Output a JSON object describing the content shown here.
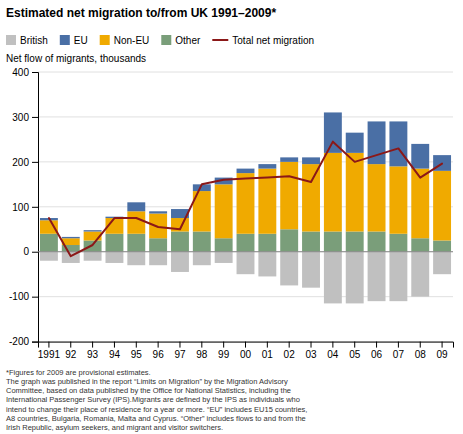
{
  "chart_data": {
    "type": "bar",
    "stacked": true,
    "title": "Estimated net migration to/from UK 1991–2009*",
    "y_label": "Net flow of migrants, thousands",
    "categories": [
      "1991",
      "92",
      "93",
      "94",
      "95",
      "96",
      "97",
      "98",
      "99",
      "00",
      "01",
      "02",
      "03",
      "04",
      "05",
      "06",
      "07",
      "08",
      "09"
    ],
    "series": [
      {
        "name": "British",
        "color": "#c0c0c0",
        "values": [
          -20,
          -25,
          -20,
          -25,
          -30,
          -30,
          -45,
          -30,
          -25,
          -50,
          -55,
          -75,
          -80,
          -115,
          -115,
          -110,
          -110,
          -100,
          -50
        ]
      },
      {
        "name": "EU",
        "color": "#4a6fa5",
        "values": [
          5,
          3,
          3,
          3,
          20,
          5,
          20,
          15,
          15,
          10,
          10,
          10,
          15,
          90,
          45,
          95,
          100,
          55,
          35
        ]
      },
      {
        "name": "Non-EU",
        "color": "#f0aa00",
        "values": [
          30,
          15,
          20,
          35,
          50,
          55,
          30,
          90,
          120,
          135,
          145,
          150,
          150,
          175,
          175,
          150,
          150,
          155,
          155
        ]
      },
      {
        "name": "Other",
        "color": "#7a9e7a",
        "values": [
          40,
          15,
          25,
          40,
          40,
          30,
          45,
          45,
          30,
          40,
          40,
          50,
          45,
          45,
          45,
          45,
          40,
          30,
          25
        ]
      },
      {
        "name": "Total net migration",
        "type": "line",
        "color": "#8b1818",
        "values": [
          75,
          -10,
          15,
          75,
          75,
          55,
          50,
          150,
          160,
          163,
          165,
          168,
          155,
          245,
          200,
          215,
          230,
          165,
          196
        ]
      }
    ],
    "ylim": [
      -200,
      400
    ],
    "yticks": [
      -200,
      -100,
      0,
      100,
      200,
      300,
      400
    ],
    "grid": true,
    "legend": "top",
    "annotations": [
      "*Figures for 2009 are provisional estimates.",
      "The graph was published in the report “Limits on Migration” by the Migration Advisory",
      "Committee, based on data published by the Office for National Statistics, including the",
      "International Passenger Survey (IPS).Migrants are defined by the IPS as individuals who",
      "intend to change their place of residence for a year or more. “EU” includes EU15 countries,",
      "A8 countries, Bulgaria, Romania, Malta and Cyprus. “Other” includes flows to and from the",
      "Irish Republic, asylum seekers, and migrant and visitor switchers."
    ]
  }
}
